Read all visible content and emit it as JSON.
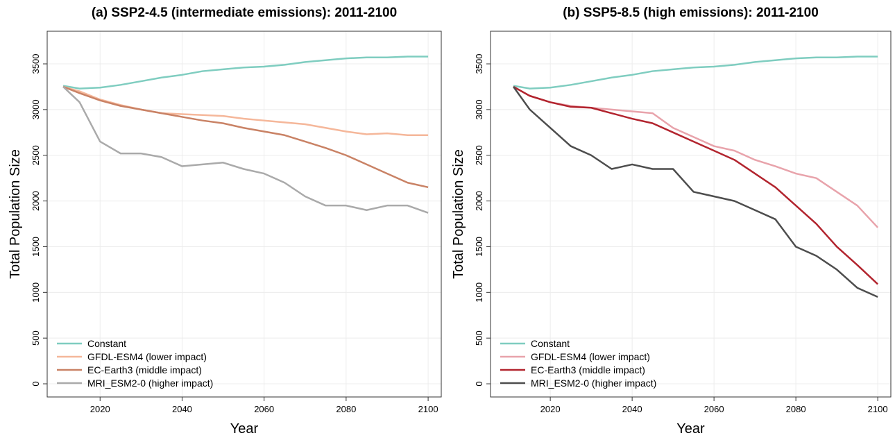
{
  "chart_data": [
    {
      "type": "line",
      "title": "(a) SSP2-4.5 (intermediate emissions): 2011-2100",
      "x_label": "Year",
      "y_label": "Total Population Size",
      "x": [
        2011,
        2015,
        2020,
        2025,
        2030,
        2035,
        2040,
        2045,
        2050,
        2055,
        2060,
        2065,
        2070,
        2075,
        2080,
        2085,
        2090,
        2095,
        2100
      ],
      "series": [
        {
          "name": "Constant",
          "color": "#7fcdc0",
          "values": [
            3260,
            3230,
            3240,
            3270,
            3310,
            3350,
            3380,
            3420,
            3440,
            3460,
            3470,
            3490,
            3520,
            3540,
            3560,
            3570,
            3570,
            3580,
            3580
          ]
        },
        {
          "name": "GFDL-ESM4 (lower impact)",
          "color": "#f5b79a",
          "values": [
            3250,
            3200,
            3110,
            3050,
            3000,
            2960,
            2950,
            2940,
            2930,
            2900,
            2880,
            2860,
            2840,
            2800,
            2760,
            2730,
            2740,
            2720,
            2720
          ]
        },
        {
          "name": "EC-Earth3 (middle impact)",
          "color": "#c98265",
          "values": [
            3250,
            3180,
            3100,
            3040,
            3000,
            2960,
            2920,
            2880,
            2850,
            2800,
            2760,
            2720,
            2650,
            2580,
            2500,
            2400,
            2300,
            2200,
            2150
          ]
        },
        {
          "name": "MRI_ESM2-0 (higher impact)",
          "color": "#aaaaaa",
          "values": [
            3250,
            3080,
            2650,
            2520,
            2520,
            2480,
            2380,
            2400,
            2420,
            2350,
            2300,
            2200,
            2050,
            1950,
            1950,
            1900,
            1950,
            1950,
            1870
          ]
        }
      ],
      "xlim": [
        2007.1,
        2103.2
      ],
      "xticks": [
        2020,
        2040,
        2060,
        2080,
        2100
      ],
      "ylim": [
        -144,
        3857
      ],
      "yticks": [
        0,
        500,
        1000,
        1500,
        2000,
        2500,
        3000,
        3500
      ],
      "grid": true,
      "legend": "bottom-left"
    },
    {
      "type": "line",
      "title": "(b) SSP5-8.5 (high emissions): 2011-2100",
      "x_label": "Year",
      "y_label": "Total Population Size",
      "x": [
        2011,
        2015,
        2020,
        2025,
        2030,
        2035,
        2040,
        2045,
        2050,
        2055,
        2060,
        2065,
        2070,
        2075,
        2080,
        2085,
        2090,
        2095,
        2100
      ],
      "series": [
        {
          "name": "Constant",
          "color": "#7fcdc0",
          "values": [
            3260,
            3230,
            3240,
            3270,
            3310,
            3350,
            3380,
            3420,
            3440,
            3460,
            3470,
            3490,
            3520,
            3540,
            3560,
            3570,
            3570,
            3580,
            3580
          ]
        },
        {
          "name": "GFDL-ESM4 (lower impact)",
          "color": "#e8a3ab",
          "values": [
            3250,
            3150,
            3080,
            3040,
            3020,
            3000,
            2980,
            2960,
            2800,
            2700,
            2600,
            2550,
            2450,
            2380,
            2300,
            2250,
            2100,
            1950,
            1710
          ]
        },
        {
          "name": "EC-Earth3 (middle impact)",
          "color": "#b2242e",
          "values": [
            3250,
            3150,
            3080,
            3030,
            3020,
            2960,
            2900,
            2850,
            2750,
            2650,
            2550,
            2450,
            2300,
            2150,
            1950,
            1750,
            1500,
            1300,
            1090
          ]
        },
        {
          "name": "MRI_ESM2-0 (higher impact)",
          "color": "#4d4d4d",
          "values": [
            3250,
            3000,
            2800,
            2600,
            2500,
            2350,
            2400,
            2350,
            2350,
            2100,
            2050,
            2000,
            1900,
            1800,
            1500,
            1400,
            1250,
            1050,
            950
          ]
        }
      ],
      "xlim": [
        2005.4,
        2103.2
      ],
      "xticks": [
        2020,
        2040,
        2060,
        2080,
        2100
      ],
      "ylim": [
        -144,
        3857
      ],
      "yticks": [
        0,
        500,
        1000,
        1500,
        2000,
        2500,
        3000,
        3500
      ],
      "grid": true,
      "legend": "bottom-left"
    }
  ]
}
